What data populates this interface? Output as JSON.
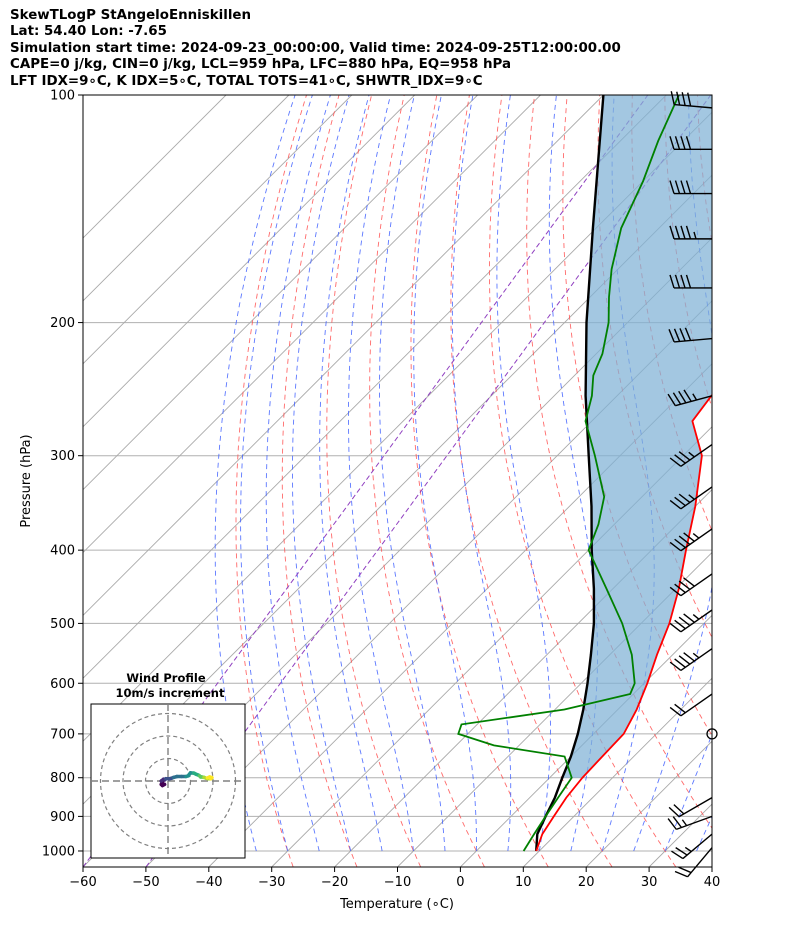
{
  "header": {
    "line1": "SkewTLogP StAngeloEnniskillen",
    "line2": "Lat: 54.40   Lon: -7.65",
    "line3": "Simulation start time: 2024-09-23_00:00:00, Valid time: 2024-09-25T12:00:00.00",
    "line4": "CAPE=0 j/kg, CIN=0 j/kg, LCL=959 hPa, LFC=880 hPa, EQ=958 hPa",
    "line5": "LFT IDX=9∘C, K IDX=5∘C, TOTAL TOTS=41∘C, SHWTR_IDX=9∘C"
  },
  "chart_data": {
    "type": "skewt",
    "xlabel": "Temperature (∘C)",
    "ylabel": "Pressure (hPa)",
    "xlim": [
      -60,
      40
    ],
    "ylim": [
      1050,
      100
    ],
    "x_ticks": [
      -60,
      -50,
      -40,
      -30,
      -20,
      -10,
      0,
      10,
      20,
      30,
      40
    ],
    "x_tick_labels": [
      "−60",
      "−50",
      "−40",
      "−30",
      "−20",
      "−10",
      "0",
      "10",
      "20",
      "30",
      "40"
    ],
    "y_ticks": [
      1000,
      900,
      800,
      700,
      600,
      500,
      400,
      300,
      200,
      100
    ],
    "y_tick_labels": [
      "1000",
      "900",
      "800",
      "700",
      "600",
      "500",
      "400",
      "300",
      "200",
      "100"
    ],
    "temperature": [
      [
        1000,
        9.5
      ],
      [
        950,
        7.8
      ],
      [
        900,
        6.8
      ],
      [
        850,
        5.8
      ],
      [
        800,
        5.2
      ],
      [
        750,
        5.0
      ],
      [
        700,
        4.8
      ],
      [
        650,
        3.0
      ],
      [
        600,
        0.5
      ],
      [
        550,
        -2.5
      ],
      [
        500,
        -5.5
      ],
      [
        450,
        -9.5
      ],
      [
        400,
        -14.5
      ],
      [
        350,
        -20.0
      ],
      [
        300,
        -27.0
      ],
      [
        270,
        -34.0
      ],
      [
        250,
        -35.0
      ],
      [
        220,
        -36.0
      ],
      [
        200,
        -40.5
      ],
      [
        185,
        -45.0
      ],
      [
        170,
        -49.0
      ],
      [
        150,
        -55.5
      ],
      [
        130,
        -63.0
      ],
      [
        115,
        -69.0
      ],
      [
        100,
        -76.0
      ]
    ],
    "dewpoint": [
      [
        1000,
        7.5
      ],
      [
        950,
        6.5
      ],
      [
        900,
        5.5
      ],
      [
        850,
        4.5
      ],
      [
        800,
        3.5
      ],
      [
        750,
        -1.0
      ],
      [
        725,
        -14.0
      ],
      [
        700,
        -21.5
      ],
      [
        680,
        -22.5
      ],
      [
        650,
        -8.5
      ],
      [
        620,
        -0.5
      ],
      [
        600,
        -1.5
      ],
      [
        550,
        -6.5
      ],
      [
        500,
        -13.0
      ],
      [
        450,
        -21.0
      ],
      [
        400,
        -30.0
      ],
      [
        370,
        -32.5
      ],
      [
        340,
        -36.0
      ],
      [
        300,
        -44.0
      ],
      [
        270,
        -51.0
      ],
      [
        250,
        -54.0
      ],
      [
        235,
        -57.0
      ],
      [
        220,
        -59.0
      ],
      [
        200,
        -63.0
      ],
      [
        185,
        -67.0
      ],
      [
        170,
        -71.0
      ],
      [
        150,
        -76.0
      ],
      [
        130,
        -80.0
      ],
      [
        115,
        -84.0
      ],
      [
        100,
        -88.0
      ]
    ],
    "parcel": [
      [
        1000,
        9.5
      ],
      [
        950,
        7.0
      ],
      [
        900,
        5.5
      ],
      [
        850,
        4.0
      ],
      [
        800,
        2.0
      ],
      [
        750,
        0.0
      ],
      [
        700,
        -2.5
      ],
      [
        650,
        -5.5
      ],
      [
        600,
        -9.0
      ],
      [
        550,
        -13.0
      ],
      [
        500,
        -17.5
      ],
      [
        450,
        -23.0
      ],
      [
        400,
        -29.5
      ],
      [
        350,
        -36.5
      ],
      [
        300,
        -45.0
      ],
      [
        250,
        -55.0
      ],
      [
        200,
        -66.5
      ],
      [
        150,
        -80.5
      ],
      [
        100,
        -100.0
      ]
    ],
    "winds": [
      {
        "p": 990,
        "speed_kt": 20,
        "dir": 220
      },
      {
        "p": 950,
        "speed_kt": 25,
        "dir": 230
      },
      {
        "p": 900,
        "speed_kt": 25,
        "dir": 250
      },
      {
        "p": 850,
        "speed_kt": 20,
        "dir": 240
      },
      {
        "p": 700,
        "speed_kt": 0,
        "dir": 0
      },
      {
        "p": 620,
        "speed_kt": 20,
        "dir": 235
      },
      {
        "p": 540,
        "speed_kt": 45,
        "dir": 235
      },
      {
        "p": 480,
        "speed_kt": 45,
        "dir": 235
      },
      {
        "p": 430,
        "speed_kt": 40,
        "dir": 235
      },
      {
        "p": 375,
        "speed_kt": 45,
        "dir": 235
      },
      {
        "p": 330,
        "speed_kt": 35,
        "dir": 235
      },
      {
        "p": 290,
        "speed_kt": 35,
        "dir": 235
      },
      {
        "p": 250,
        "speed_kt": 45,
        "dir": 255
      },
      {
        "p": 210,
        "speed_kt": 40,
        "dir": 265
      },
      {
        "p": 180,
        "speed_kt": 40,
        "dir": 270
      },
      {
        "p": 155,
        "speed_kt": 45,
        "dir": 270
      },
      {
        "p": 135,
        "speed_kt": 40,
        "dir": 270
      },
      {
        "p": 118,
        "speed_kt": 40,
        "dir": 270
      },
      {
        "p": 104,
        "speed_kt": 40,
        "dir": 275
      }
    ],
    "hodograph": {
      "title": "Wind Profile",
      "subtitle": "10m/s increment",
      "rings": [
        10,
        20,
        30
      ],
      "points": [
        [
          -1.5,
          -1.5
        ],
        [
          -2.5,
          -2.0
        ],
        [
          -3.0,
          -1.5
        ],
        [
          -2.5,
          -0.5
        ],
        [
          -3.0,
          0.0
        ],
        [
          -2.0,
          0.8
        ],
        [
          -1.5,
          0.5
        ],
        [
          -1.0,
          1.0
        ],
        [
          0.5,
          1.0
        ],
        [
          1.5,
          1.2
        ],
        [
          2.5,
          1.6
        ],
        [
          4.0,
          2.0
        ],
        [
          6.0,
          2.0
        ],
        [
          8.0,
          2.0
        ],
        [
          9.0,
          2.3
        ],
        [
          9.5,
          3.0
        ],
        [
          10.0,
          3.6
        ],
        [
          11.5,
          3.5
        ],
        [
          12.5,
          3.0
        ],
        [
          13.5,
          2.6
        ],
        [
          14.0,
          2.3
        ],
        [
          14.5,
          1.8
        ],
        [
          15.0,
          1.8
        ],
        [
          16.0,
          1.6
        ],
        [
          17.0,
          1.2
        ],
        [
          18.0,
          1.0
        ],
        [
          19.0,
          1.0
        ],
        [
          19.5,
          1.5
        ],
        [
          18.5,
          1.8
        ],
        [
          17.5,
          1.4
        ]
      ]
    }
  }
}
